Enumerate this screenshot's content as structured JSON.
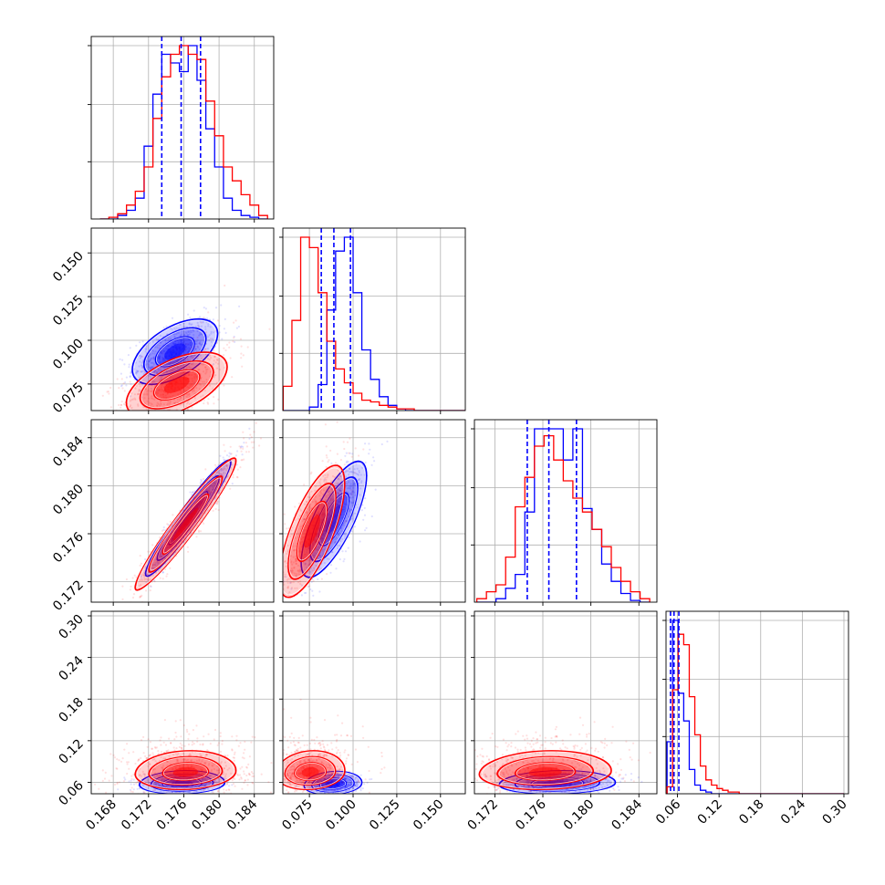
{
  "colors": {
    "blue": "#0000ff",
    "red": "#ff0000",
    "grid": "#b0b0b0",
    "axis": "#000000"
  },
  "chart_data": {
    "type": "corner",
    "grid": true,
    "series": [
      {
        "name": "",
        "color": "#0000ff"
      },
      {
        "name": "",
        "color": "#ff0000"
      }
    ],
    "parameters": [
      {
        "index": 0,
        "range": [
          0.1655,
          0.1862
        ],
        "ticks": [
          0.168,
          0.172,
          0.176,
          0.18,
          0.184
        ],
        "tick_labels": [
          "0.168",
          "0.172",
          "0.176",
          "0.180",
          "0.184"
        ],
        "quantiles_blue": [
          0.1735,
          0.1757,
          0.1779
        ]
      },
      {
        "index": 1,
        "range": [
          0.0598,
          0.1642
        ],
        "ticks": [
          0.075,
          0.1,
          0.125,
          0.15
        ],
        "tick_labels": [
          "0.075",
          "0.100",
          "0.125",
          "0.150"
        ],
        "quantiles_blue": [
          0.0818,
          0.089,
          0.0985
        ]
      },
      {
        "index": 2,
        "range": [
          0.1703,
          0.1855
        ],
        "ticks": [
          0.172,
          0.176,
          0.18,
          0.184
        ],
        "tick_labels": [
          "0.172",
          "0.176",
          "0.180",
          "0.184"
        ],
        "quantiles_blue": [
          0.1747,
          0.1765,
          0.1788
        ]
      },
      {
        "index": 3,
        "range": [
          0.0435,
          0.3066
        ],
        "ticks": [
          0.06,
          0.12,
          0.18,
          0.24,
          0.3
        ],
        "tick_labels": [
          "0.06",
          "0.12",
          "0.18",
          "0.24",
          "0.30"
        ],
        "quantiles_blue": [
          0.05,
          0.055,
          0.062
        ]
      }
    ],
    "histograms": [
      {
        "param": 0,
        "bins": [
          0.1665,
          0.1675,
          0.1685,
          0.1695,
          0.1705,
          0.1715,
          0.1725,
          0.1735,
          0.1745,
          0.1755,
          0.1765,
          0.1775,
          0.1785,
          0.1795,
          0.1805,
          0.1815,
          0.1825,
          0.1835,
          0.1845,
          0.1855
        ],
        "blue": [
          0,
          0,
          2,
          5,
          12,
          42,
          72,
          95,
          90,
          85,
          100,
          80,
          52,
          30,
          12,
          5,
          2,
          1,
          0
        ],
        "red": [
          0,
          1,
          3,
          8,
          16,
          30,
          58,
          82,
          95,
          100,
          95,
          92,
          68,
          48,
          30,
          22,
          14,
          8,
          2
        ]
      },
      {
        "param": 1,
        "bins": [
          0.06,
          0.065,
          0.07,
          0.075,
          0.08,
          0.085,
          0.09,
          0.095,
          0.1,
          0.105,
          0.11,
          0.115,
          0.12,
          0.125,
          0.13,
          0.135,
          0.14,
          0.145,
          0.15,
          0.155,
          0.16,
          0.164
        ],
        "blue": [
          0,
          0,
          0,
          2,
          15,
          58,
          92,
          100,
          68,
          35,
          18,
          8,
          3,
          1,
          0,
          0,
          0,
          0,
          0,
          0,
          0
        ],
        "red": [
          14,
          52,
          100,
          94,
          68,
          40,
          24,
          16,
          10,
          6,
          5,
          3,
          2,
          1,
          1,
          0,
          0,
          0,
          0,
          0,
          0
        ]
      },
      {
        "param": 2,
        "bins": [
          0.1705,
          0.1713,
          0.1721,
          0.1729,
          0.1737,
          0.1745,
          0.1753,
          0.1761,
          0.1769,
          0.1777,
          0.1785,
          0.1793,
          0.1801,
          0.1809,
          0.1817,
          0.1825,
          0.1833,
          0.1841,
          0.1849
        ],
        "blue": [
          0,
          0,
          2,
          8,
          16,
          52,
          100,
          100,
          100,
          82,
          100,
          54,
          42,
          22,
          12,
          5,
          1,
          0
        ],
        "red": [
          2,
          6,
          10,
          26,
          55,
          72,
          90,
          96,
          82,
          70,
          60,
          52,
          42,
          32,
          20,
          12,
          6,
          2
        ]
      },
      {
        "param": 3,
        "bins": [
          0.045,
          0.053,
          0.061,
          0.069,
          0.077,
          0.085,
          0.093,
          0.101,
          0.109,
          0.117,
          0.125,
          0.133,
          0.141,
          0.149,
          0.157,
          0.165,
          0.3
        ],
        "blue": [
          30,
          100,
          58,
          42,
          14,
          5,
          2,
          1,
          0,
          0,
          0,
          0,
          0,
          0,
          0,
          0
        ],
        "red": [
          4,
          60,
          92,
          86,
          56,
          34,
          16,
          8,
          5,
          3,
          2,
          1,
          1,
          0,
          0,
          0
        ]
      }
    ],
    "pairs": [
      {
        "x": 0,
        "y": 1,
        "blue": {
          "center": [
            0.175,
            0.0935
          ],
          "sigma": [
            0.0022,
            0.0085
          ],
          "rho": 0.55,
          "spread": 2.0
        },
        "red": {
          "center": [
            0.1752,
            0.0745
          ],
          "sigma": [
            0.0026,
            0.0085
          ],
          "rho": 0.55,
          "spread": 2.3
        }
      },
      {
        "x": 0,
        "y": 2,
        "blue": {
          "center": [
            0.1765,
            0.1773
          ],
          "sigma": [
            0.0022,
            0.0022
          ],
          "rho": 0.96,
          "spread": 2.0
        },
        "red": {
          "center": [
            0.1762,
            0.1768
          ],
          "sigma": [
            0.0026,
            0.0025
          ],
          "rho": 0.96,
          "spread": 2.3
        }
      },
      {
        "x": 0,
        "y": 3,
        "blue": {
          "center": [
            0.1758,
            0.058
          ],
          "sigma": [
            0.0022,
            0.0065
          ],
          "rho": 0.1,
          "spread": 1.8
        },
        "red": {
          "center": [
            0.1762,
            0.074
          ],
          "sigma": [
            0.0026,
            0.011
          ],
          "rho": 0.1,
          "spread": 2.6
        }
      },
      {
        "x": 1,
        "y": 2,
        "blue": {
          "center": [
            0.089,
            0.1772
          ],
          "sigma": [
            0.0085,
            0.0022
          ],
          "rho": 0.75,
          "spread": 2.0
        },
        "red": {
          "center": [
            0.0765,
            0.1762
          ],
          "sigma": [
            0.0085,
            0.0025
          ],
          "rho": 0.72,
          "spread": 2.3
        }
      },
      {
        "x": 1,
        "y": 3,
        "blue": {
          "center": [
            0.0885,
            0.057
          ],
          "sigma": [
            0.0075,
            0.0065
          ],
          "rho": 0.15,
          "spread": 1.8
        },
        "red": {
          "center": [
            0.0755,
            0.074
          ],
          "sigma": [
            0.009,
            0.011
          ],
          "rho": 0.1,
          "spread": 2.6
        }
      },
      {
        "x": 2,
        "y": 3,
        "blue": {
          "center": [
            0.1772,
            0.058
          ],
          "sigma": [
            0.0022,
            0.0065
          ],
          "rho": 0.1,
          "spread": 1.8
        },
        "red": {
          "center": [
            0.1762,
            0.074
          ],
          "sigma": [
            0.0025,
            0.011
          ],
          "rho": 0.1,
          "spread": 2.6
        }
      }
    ]
  }
}
